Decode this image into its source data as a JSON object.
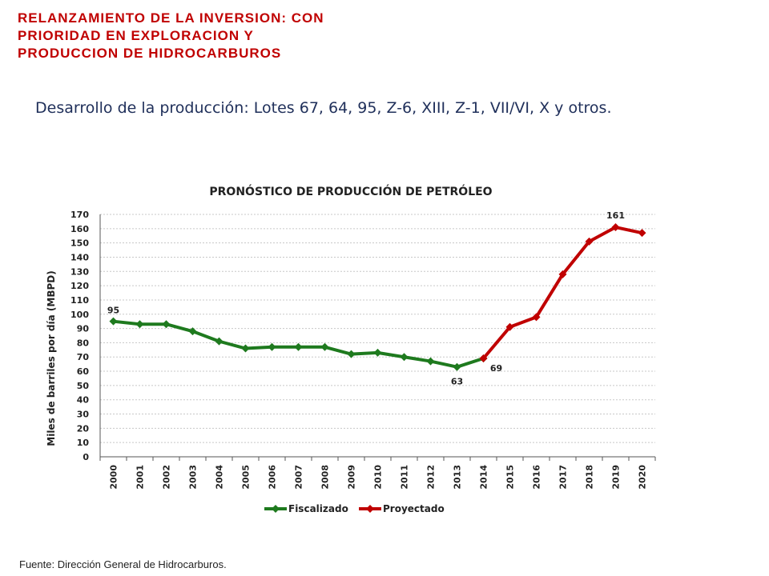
{
  "slide": {
    "title_lines": [
      "RELANZAMIENTO DE LA INVERSION: CON",
      "PRIORIDAD EN EXPLORACION Y",
      "PRODUCCION DE HIDROCARBUROS"
    ],
    "subtitle": "Desarrollo de la producción: Lotes 67, 64, 95, Z-6, XIII, Z-1, VII/VI, X y otros.",
    "source": "Fuente: Dirección General de Hidrocarburos."
  },
  "chart_data": {
    "type": "line",
    "title": "PRONÓSTICO DE PRODUCCIÓN DE PETRÓLEO",
    "xlabel": "",
    "ylabel": "Miles de barriles por día (MBPD)",
    "ylim": [
      0,
      170
    ],
    "ytick_step": 10,
    "grid": true,
    "legend_position": "bottom",
    "categories": [
      "2000",
      "2001",
      "2002",
      "2003",
      "2004",
      "2005",
      "2006",
      "2007",
      "2008",
      "2009",
      "2010",
      "2011",
      "2012",
      "2013",
      "2014",
      "2015",
      "2016",
      "2017",
      "2018",
      "2019",
      "2020"
    ],
    "series": [
      {
        "name": "Fiscalizado",
        "color": "#1e7a1e",
        "x": [
          "2000",
          "2001",
          "2002",
          "2003",
          "2004",
          "2005",
          "2006",
          "2007",
          "2008",
          "2009",
          "2010",
          "2011",
          "2012",
          "2013",
          "2014"
        ],
        "values": [
          95,
          93,
          93,
          88,
          81,
          76,
          77,
          77,
          77,
          72,
          73,
          70,
          67,
          63,
          69
        ]
      },
      {
        "name": "Proyectado",
        "color": "#c00000",
        "x": [
          "2014",
          "2015",
          "2016",
          "2017",
          "2018",
          "2019",
          "2020"
        ],
        "values": [
          69,
          91,
          98,
          128,
          151,
          161,
          157
        ]
      }
    ],
    "data_labels": [
      {
        "x": "2000",
        "value": 95,
        "text": "95"
      },
      {
        "x": "2013",
        "value": 63,
        "text": "63"
      },
      {
        "x": "2014",
        "value": 69,
        "text": "69"
      },
      {
        "x": "2019",
        "value": 161,
        "text": "161"
      }
    ]
  }
}
